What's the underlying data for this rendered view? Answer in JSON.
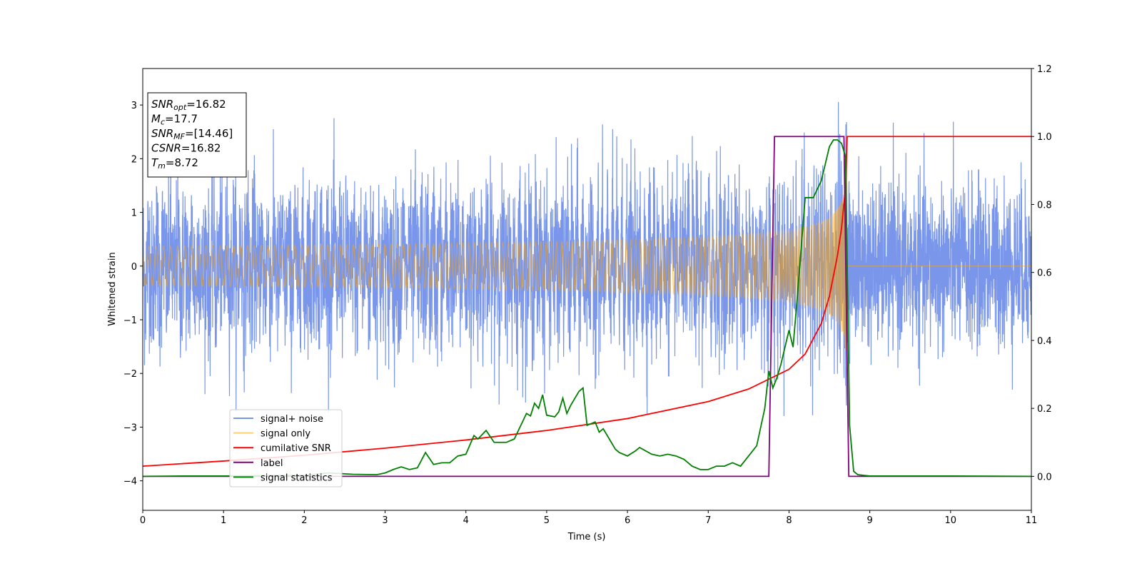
{
  "chart_data": {
    "type": "line",
    "xlabel": "Time (s)",
    "ylabel": "Whitened strain",
    "xlim": [
      0,
      11
    ],
    "ylim": [
      -4.55,
      3.68
    ],
    "y2lim": [
      -0.1,
      1.2
    ],
    "x_ticks": [
      "0",
      "1",
      "2",
      "3",
      "4",
      "5",
      "6",
      "7",
      "8",
      "9",
      "10",
      "11"
    ],
    "x_tick_values": [
      0,
      1,
      2,
      3,
      4,
      5,
      6,
      7,
      8,
      9,
      10,
      11
    ],
    "y_ticks": [
      "−4",
      "−3",
      "−2",
      "−1",
      "0",
      "1",
      "2",
      "3"
    ],
    "y_tick_values": [
      -4,
      -3,
      -2,
      -1,
      0,
      1,
      2,
      3
    ],
    "y2_ticks": [
      "0.0",
      "0.2",
      "0.4",
      "0.6",
      "0.8",
      "1.0",
      "1.2"
    ],
    "y2_tick_values": [
      0.0,
      0.2,
      0.4,
      0.6,
      0.8,
      1.0,
      1.2
    ],
    "grid": false,
    "legend_position": "lower-left",
    "info_box": [
      {
        "sym": "SNR",
        "sub": "opt",
        "val": "=16.82"
      },
      {
        "sym": "M",
        "sub": "c",
        "val": "=17.7"
      },
      {
        "sym": "SNR",
        "sub": "MF",
        "val": "=[14.46]"
      },
      {
        "sym": "CSNR",
        "sub": "",
        "val": "=16.82"
      },
      {
        "sym": "T",
        "sub": "m",
        "val": "=8.72"
      }
    ],
    "series": [
      {
        "name": "signal+ noise",
        "axis": "left",
        "color": "#4169e1",
        "kind": "noise",
        "noise_sigma": 0.75,
        "description_range": [
          -2.8,
          3.3
        ]
      },
      {
        "name": "signal only",
        "axis": "left",
        "color": "#ffa500",
        "kind": "chirp",
        "start_x": 0,
        "merger_x": 8.72,
        "end_x": 11,
        "peak_amplitude": 2.5
      },
      {
        "name": "cumilative SNR",
        "axis": "right",
        "color": "#ff0000",
        "kind": "line",
        "x": [
          0,
          1,
          2,
          3,
          4,
          5,
          6,
          7,
          7.5,
          8,
          8.2,
          8.4,
          8.5,
          8.6,
          8.65,
          8.7,
          8.72,
          8.74,
          11
        ],
        "y": [
          0.03,
          0.045,
          0.062,
          0.083,
          0.107,
          0.135,
          0.17,
          0.22,
          0.257,
          0.315,
          0.36,
          0.45,
          0.53,
          0.65,
          0.73,
          0.85,
          1.0,
          1.0,
          1.0
        ]
      },
      {
        "name": "label",
        "axis": "right",
        "color": "#800080",
        "kind": "line",
        "x": [
          0,
          7.75,
          7.82,
          8.68,
          8.74,
          11
        ],
        "y": [
          0.0,
          0.0,
          1.0,
          1.0,
          0.0,
          0.0
        ]
      },
      {
        "name": "signal statistics",
        "axis": "right",
        "color": "#008000",
        "kind": "line",
        "x": [
          0,
          0.5,
          1,
          1.5,
          2,
          2.3,
          2.6,
          2.9,
          3.0,
          3.1,
          3.2,
          3.3,
          3.4,
          3.5,
          3.6,
          3.7,
          3.8,
          3.9,
          4.0,
          4.1,
          4.15,
          4.25,
          4.35,
          4.5,
          4.6,
          4.7,
          4.75,
          4.8,
          4.85,
          4.9,
          4.95,
          5.0,
          5.1,
          5.15,
          5.2,
          5.25,
          5.3,
          5.4,
          5.45,
          5.5,
          5.6,
          5.65,
          5.7,
          5.8,
          5.85,
          5.9,
          6.0,
          6.1,
          6.15,
          6.3,
          6.4,
          6.5,
          6.6,
          6.7,
          6.8,
          6.9,
          7.0,
          7.1,
          7.2,
          7.3,
          7.4,
          7.5,
          7.6,
          7.7,
          7.75,
          7.8,
          7.85,
          7.9,
          8.0,
          8.05,
          8.1,
          8.2,
          8.3,
          8.4,
          8.5,
          8.55,
          8.6,
          8.65,
          8.7,
          8.75,
          8.8,
          8.85,
          9,
          10,
          11
        ],
        "y": [
          0.0,
          0.001,
          0.001,
          0.002,
          0.003,
          0.01,
          0.006,
          0.005,
          0.01,
          0.02,
          0.028,
          0.02,
          0.025,
          0.07,
          0.035,
          0.04,
          0.04,
          0.06,
          0.065,
          0.12,
          0.11,
          0.135,
          0.1,
          0.1,
          0.11,
          0.16,
          0.185,
          0.178,
          0.215,
          0.2,
          0.24,
          0.18,
          0.175,
          0.19,
          0.23,
          0.185,
          0.21,
          0.25,
          0.26,
          0.15,
          0.16,
          0.13,
          0.14,
          0.1,
          0.08,
          0.07,
          0.06,
          0.075,
          0.085,
          0.065,
          0.06,
          0.065,
          0.06,
          0.05,
          0.03,
          0.02,
          0.02,
          0.03,
          0.03,
          0.04,
          0.03,
          0.06,
          0.09,
          0.2,
          0.31,
          0.26,
          0.29,
          0.33,
          0.43,
          0.38,
          0.52,
          0.82,
          0.82,
          0.87,
          0.97,
          0.99,
          0.99,
          0.98,
          0.94,
          0.15,
          0.015,
          0.005,
          0.001,
          0.001,
          0.0
        ]
      }
    ]
  }
}
